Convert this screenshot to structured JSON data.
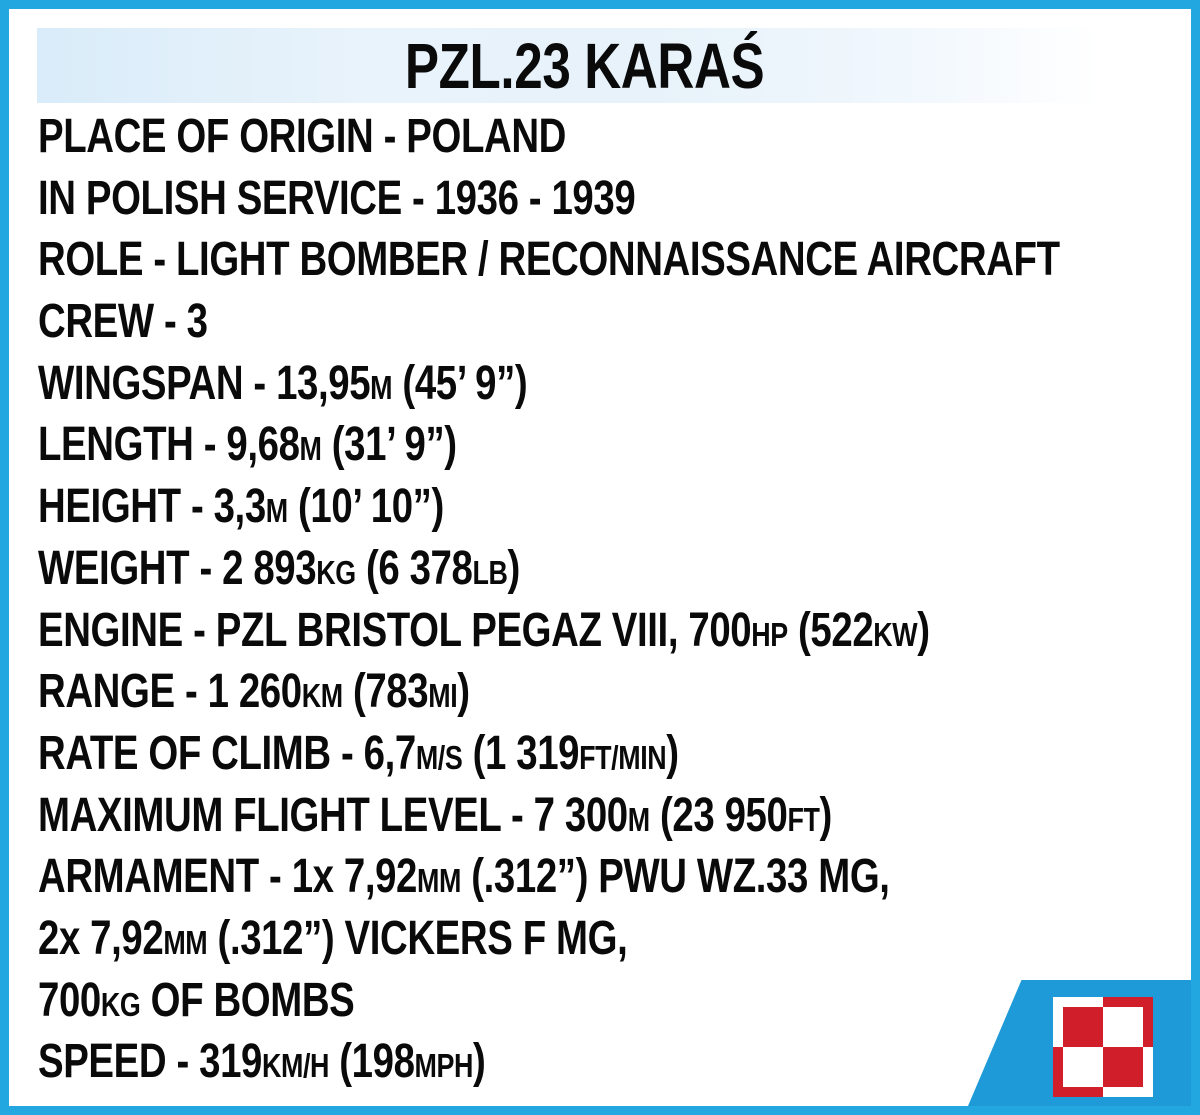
{
  "page": {
    "title": "PZL.23 KARAŚ"
  },
  "colors": {
    "border_cyan": "#22a7e0",
    "accent_blue": "#1d9ad7",
    "checker_red": "#d01f2b",
    "checker_white": "#ffffff",
    "band_blue": "#d9ecf9",
    "text_color": "#0a0a0a"
  },
  "emblem": {
    "name": "polish-air-force-checkerboard"
  },
  "spec_lines": [
    {
      "segments": [
        {
          "text": "PLACE OF ORIGIN - POLAND",
          "small": false
        }
      ]
    },
    {
      "segments": [
        {
          "text": "IN POLISH SERVICE - 1936 - 1939",
          "small": false
        }
      ]
    },
    {
      "segments": [
        {
          "text": "ROLE - LIGHT BOMBER / RECONNAISSANCE AIRCRAFT",
          "small": false
        }
      ]
    },
    {
      "segments": [
        {
          "text": "CREW - 3",
          "small": false
        }
      ]
    },
    {
      "segments": [
        {
          "text": "WINGSPAN - 13,95",
          "small": false
        },
        {
          "text": "M",
          "small": true
        },
        {
          "text": " (45’ 9”)",
          "small": false
        }
      ]
    },
    {
      "segments": [
        {
          "text": "LENGTH - 9,68",
          "small": false
        },
        {
          "text": "M",
          "small": true
        },
        {
          "text": " (31’ 9”)",
          "small": false
        }
      ]
    },
    {
      "segments": [
        {
          "text": "HEIGHT - 3,3",
          "small": false
        },
        {
          "text": "M",
          "small": true
        },
        {
          "text": " (10’ 10”)",
          "small": false
        }
      ]
    },
    {
      "segments": [
        {
          "text": "WEIGHT - 2 893",
          "small": false
        },
        {
          "text": "KG",
          "small": true
        },
        {
          "text": " (6 378",
          "small": false
        },
        {
          "text": "LB",
          "small": true
        },
        {
          "text": ")",
          "small": false
        }
      ]
    },
    {
      "segments": [
        {
          "text": "ENGINE - PZL BRISTOL PEGAZ VIII, 700",
          "small": false
        },
        {
          "text": "HP",
          "small": true
        },
        {
          "text": " (522",
          "small": false
        },
        {
          "text": "KW",
          "small": true
        },
        {
          "text": ")",
          "small": false
        }
      ]
    },
    {
      "segments": [
        {
          "text": "RANGE - 1 260",
          "small": false
        },
        {
          "text": "KM",
          "small": true
        },
        {
          "text": " (783",
          "small": false
        },
        {
          "text": "MI",
          "small": true
        },
        {
          "text": ")",
          "small": false
        }
      ]
    },
    {
      "segments": [
        {
          "text": "RATE OF CLIMB - 6,7",
          "small": false
        },
        {
          "text": "M/S",
          "small": true
        },
        {
          "text": " (1 319",
          "small": false
        },
        {
          "text": "FT/MIN",
          "small": true
        },
        {
          "text": ")",
          "small": false
        }
      ]
    },
    {
      "segments": [
        {
          "text": "MAXIMUM FLIGHT LEVEL - 7 300",
          "small": false
        },
        {
          "text": "M",
          "small": true
        },
        {
          "text": " (23 950",
          "small": false
        },
        {
          "text": "FT",
          "small": true
        },
        {
          "text": ")",
          "small": false
        }
      ]
    },
    {
      "segments": [
        {
          "text": "ARMAMENT - 1x 7,92",
          "small": false
        },
        {
          "text": "MM",
          "small": true
        },
        {
          "text": " (.312”) PWU WZ.33 MG,",
          "small": false
        }
      ]
    },
    {
      "segments": [
        {
          "text": "2x 7,92",
          "small": false
        },
        {
          "text": "MM",
          "small": true
        },
        {
          "text": " (.312”) VICKERS F MG,",
          "small": false
        }
      ]
    },
    {
      "segments": [
        {
          "text": "700",
          "small": false
        },
        {
          "text": "KG",
          "small": true
        },
        {
          "text": " OF BOMBS",
          "small": false
        }
      ]
    },
    {
      "segments": [
        {
          "text": "SPEED - 319",
          "small": false
        },
        {
          "text": "KM/H",
          "small": true
        },
        {
          "text": " (198",
          "small": false
        },
        {
          "text": "MPH",
          "small": true
        },
        {
          "text": ")",
          "small": false
        }
      ]
    }
  ]
}
